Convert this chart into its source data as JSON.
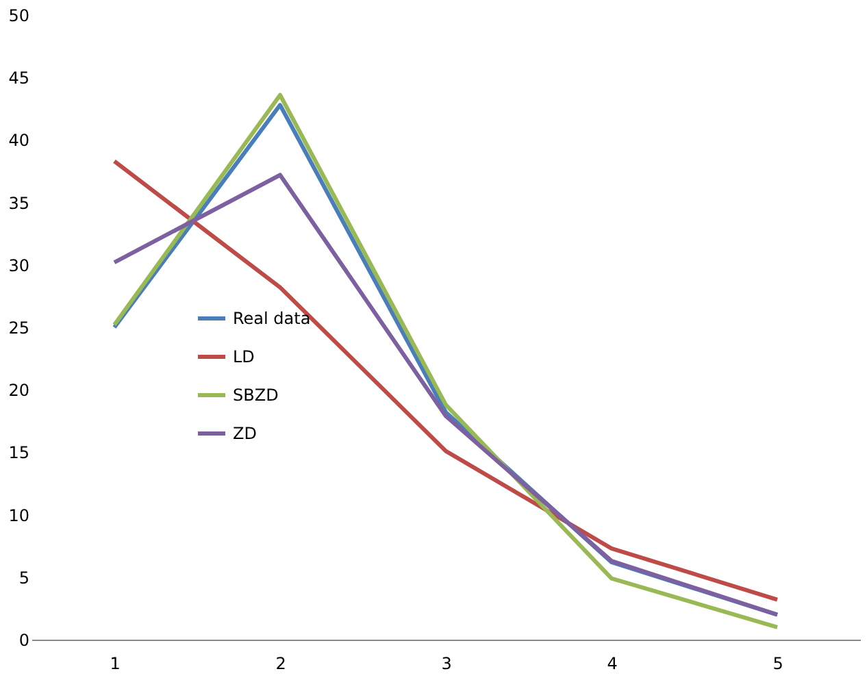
{
  "chart_data": {
    "type": "line",
    "categories": [
      "1",
      "2",
      "3",
      "4",
      "5"
    ],
    "series": [
      {
        "name": "Real data",
        "color": "#4a7ebb",
        "values": [
          25.0,
          42.8,
          18.2,
          6.2,
          2.0
        ]
      },
      {
        "name": "LD",
        "color": "#be4b48",
        "values": [
          38.3,
          28.2,
          15.1,
          7.3,
          3.2
        ]
      },
      {
        "name": "SBZD",
        "color": "#98b954",
        "values": [
          25.2,
          43.6,
          18.8,
          4.9,
          1.0
        ]
      },
      {
        "name": "ZD",
        "color": "#7d60a0",
        "values": [
          30.2,
          37.2,
          17.9,
          6.3,
          2.0
        ]
      }
    ],
    "ylim": [
      0,
      50
    ],
    "yticks": [
      0,
      5,
      10,
      15,
      20,
      25,
      30,
      35,
      40,
      45,
      50
    ],
    "grid": false,
    "legend": "left",
    "marker": "none",
    "line_style": "solid"
  }
}
